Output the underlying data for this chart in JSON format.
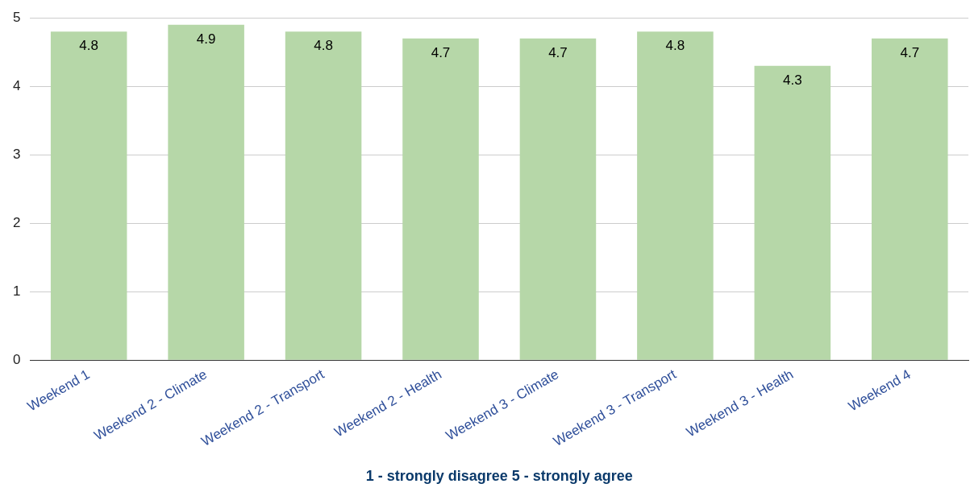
{
  "chart_data": {
    "type": "bar",
    "xlabel": "1 - strongly disagree 5 - strongly agree",
    "categories": [
      "Weekend 1",
      "Weekend 2 - Climate",
      "Weekend 2 - Transport",
      "Weekend 2 - Health",
      "Weekend 3 - Climate",
      "Weekend 3 - Transport",
      "Weekend 3 - Health",
      "Weekend 4"
    ],
    "values": [
      4.8,
      4.9,
      4.8,
      4.7,
      4.7,
      4.8,
      4.3,
      4.7
    ],
    "color": "#b6d7a8",
    "ylim": [
      0,
      5
    ],
    "yticks": [
      0,
      1,
      2,
      3,
      4,
      5
    ],
    "grid": "y",
    "data_labels": true,
    "legend": false
  }
}
